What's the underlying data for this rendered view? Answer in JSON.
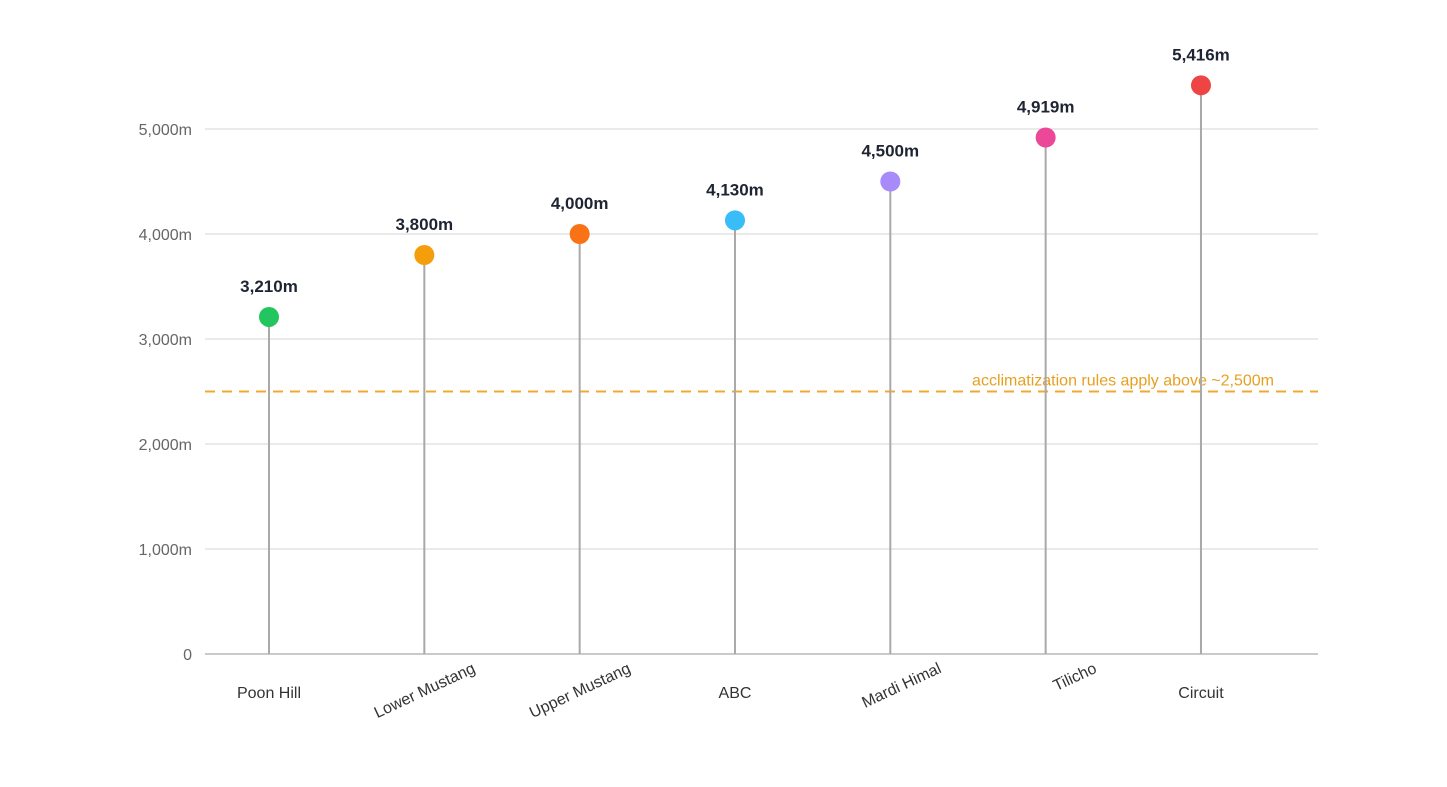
{
  "chart_data": {
    "type": "lollipop",
    "title": "",
    "xlabel": "",
    "ylabel": "",
    "ylim": [
      0,
      5500
    ],
    "y_ticks": [
      0,
      1000,
      2000,
      3000,
      4000,
      5000
    ],
    "y_tick_labels": [
      "0",
      "1,000m",
      "2,000m",
      "3,000m",
      "4,000m",
      "5,000m"
    ],
    "grid": true,
    "categories": [
      "Poon Hill",
      "Lower Mustang",
      "Upper Mustang",
      "ABC",
      "Mardi Himal",
      "Tilicho",
      "Circuit"
    ],
    "category_label_rotation": [
      0,
      -25,
      -25,
      0,
      -25,
      -25,
      0
    ],
    "values": [
      3210,
      3800,
      4000,
      4130,
      4500,
      4919,
      5416
    ],
    "value_labels": [
      "3,210m",
      "3,800m",
      "4,000m",
      "4,130m",
      "4,500m",
      "4,919m",
      "5,416m"
    ],
    "point_colors": [
      "#22c55e",
      "#f59e0b",
      "#f97316",
      "#38bdf8",
      "#a78bfa",
      "#ec4899",
      "#ef4444"
    ],
    "reference_line": {
      "value": 2500,
      "label": "acclimatization rules apply above ~2,500m",
      "color": "#f0a830",
      "style": "dashed"
    }
  }
}
